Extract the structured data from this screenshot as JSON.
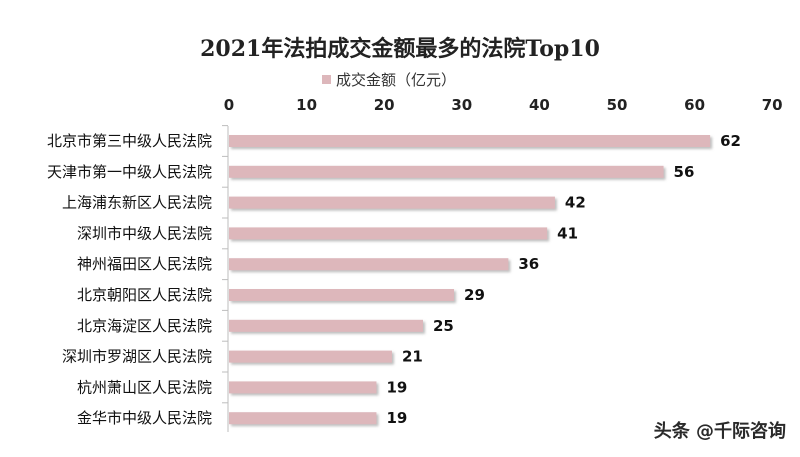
{
  "chart_data": {
    "type": "bar",
    "orientation": "horizontal",
    "title": "2021年法拍成交金额最多的法院Top10",
    "series": [
      {
        "name": "成交金额（亿元）",
        "color": "#ddb7bb",
        "values": [
          62,
          56,
          42,
          41,
          36,
          29,
          25,
          21,
          19,
          19
        ]
      }
    ],
    "categories": [
      "北京市第三中级人民法院",
      "天津市第一中级人民法院",
      "上海浦东新区人民法院",
      "深圳市中级人民法院",
      "神州福田区人民法院",
      "北京朝阳区人民法院",
      "北京海淀区人民法院",
      "深圳市罗湖区人民法院",
      "杭州萧山区人民法院",
      "金华市中级人民法院"
    ],
    "xlim": [
      0,
      70
    ],
    "xticks": [
      0,
      10,
      20,
      30,
      40,
      50,
      60,
      70
    ],
    "axis_position": "top",
    "legend_position": "top-center",
    "data_labels": true,
    "grid": false
  },
  "watermark": {
    "text": "头条 @千际咨询"
  }
}
